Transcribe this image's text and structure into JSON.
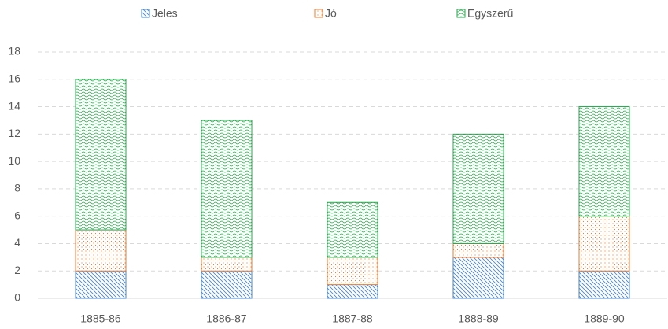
{
  "chart_data": {
    "type": "stacked_bar",
    "categories": [
      "1885-86",
      "1886-87",
      "1887-88",
      "1888-89",
      "1889-90"
    ],
    "series": [
      {
        "name": "Jeles",
        "color": "#4a86c8",
        "values": [
          2,
          2,
          1,
          3,
          2
        ]
      },
      {
        "name": "Jó",
        "color": "#ed7d31",
        "values": [
          3,
          1,
          2,
          1,
          4
        ]
      },
      {
        "name": "Egyszerű",
        "color": "#22a84a",
        "values": [
          11,
          10,
          4,
          8,
          8
        ]
      }
    ],
    "ylim": [
      0,
      18
    ],
    "yticks": [
      0,
      2,
      4,
      6,
      8,
      10,
      12,
      14,
      16,
      18
    ],
    "grid": true,
    "legend": "top"
  }
}
